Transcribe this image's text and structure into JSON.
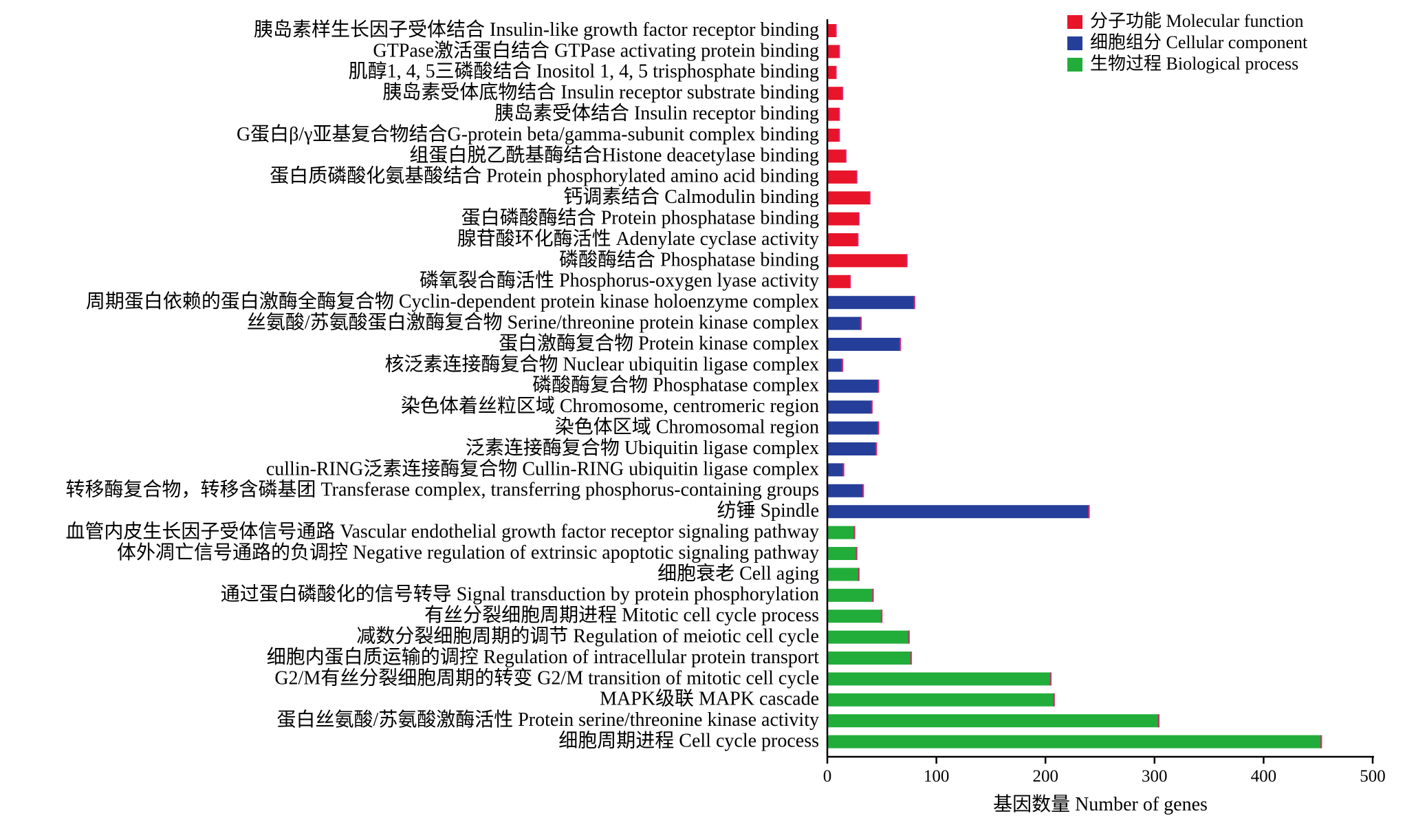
{
  "chart_data": {
    "type": "bar",
    "orientation": "horizontal",
    "xlabel": "基因数量 Number of genes",
    "ylabel": "",
    "xlim": [
      0,
      500
    ],
    "xticks": [
      0,
      100,
      200,
      300,
      400,
      500
    ],
    "grid": false,
    "legend_position": "top-right",
    "legend": [
      {
        "key": "mf",
        "label": "分子功能 Molecular function",
        "color": "#e8142a"
      },
      {
        "key": "cc",
        "label": "细胞组分 Cellular component",
        "color": "#253e9a"
      },
      {
        "key": "bp",
        "label": "生物过程 Biological process",
        "color": "#22ad3a"
      }
    ],
    "bars": [
      {
        "label": "胰岛素样生长因子受体结合 Insulin-like growth factor receptor binding",
        "value": 8,
        "group": "mf"
      },
      {
        "label": "GTPase激活蛋白结合 GTPase activating protein binding",
        "value": 11,
        "group": "mf"
      },
      {
        "label": "肌醇1, 4, 5三磷酸结合 Inositol 1, 4, 5 trisphosphate binding",
        "value": 8,
        "group": "mf"
      },
      {
        "label": "胰岛素受体底物结合 Insulin receptor substrate binding",
        "value": 14,
        "group": "mf"
      },
      {
        "label": "胰岛素受体结合 Insulin receptor binding",
        "value": 11,
        "group": "mf"
      },
      {
        "label": "G蛋白β/γ亚基复合物结合G-protein beta/gamma-subunit complex binding",
        "value": 11,
        "group": "mf"
      },
      {
        "label": "组蛋白脱乙酰基酶结合Histone deacetylase binding",
        "value": 17,
        "group": "mf"
      },
      {
        "label": "蛋白质磷酸化氨基酸结合 Protein phosphorylated amino acid binding",
        "value": 27,
        "group": "mf"
      },
      {
        "label": "钙调素结合 Calmodulin binding",
        "value": 39,
        "group": "mf"
      },
      {
        "label": "蛋白磷酸酶结合 Protein phosphatase binding",
        "value": 29,
        "group": "mf"
      },
      {
        "label": "腺苷酸环化酶活性 Adenylate cyclase activity",
        "value": 28,
        "group": "mf"
      },
      {
        "label": "磷酸酶结合 Phosphatase binding",
        "value": 73,
        "group": "mf"
      },
      {
        "label": "磷氧裂合酶活性 Phosphorus-oxygen lyase activity",
        "value": 21,
        "group": "mf"
      },
      {
        "label": "周期蛋白依赖的蛋白激酶全酶复合物 Cyclin-dependent protein kinase holoenzyme complex",
        "value": 80,
        "group": "cc"
      },
      {
        "label": "丝氨酸/苏氨酸蛋白激酶复合物 Serine/threonine protein kinase complex",
        "value": 31,
        "group": "cc"
      },
      {
        "label": "蛋白激酶复合物 Protein kinase complex",
        "value": 67,
        "group": "cc"
      },
      {
        "label": "核泛素连接酶复合物 Nuclear ubiquitin ligase complex",
        "value": 14,
        "group": "cc"
      },
      {
        "label": "磷酸酶复合物 Phosphatase complex",
        "value": 47,
        "group": "cc"
      },
      {
        "label": "染色体着丝粒区域 Chromosome, centromeric region",
        "value": 41,
        "group": "cc"
      },
      {
        "label": "染色体区域 Chromosomal region",
        "value": 47,
        "group": "cc"
      },
      {
        "label": "泛素连接酶复合物 Ubiquitin ligase complex",
        "value": 45,
        "group": "cc"
      },
      {
        "label": "cullin-RING泛素连接酶复合物 Cullin-RING ubiquitin ligase complex",
        "value": 15,
        "group": "cc"
      },
      {
        "label": "转移酶复合物，转移含磷基团 Transferase complex, transferring phosphorus-containing groups",
        "value": 33,
        "group": "cc"
      },
      {
        "label": "纺锤 Spindle",
        "value": 240,
        "group": "cc"
      },
      {
        "label": "血管内皮生长因子受体信号通路 Vascular endothelial growth factor receptor signaling pathway",
        "value": 25,
        "group": "bp"
      },
      {
        "label": "体外凋亡信号通路的负调控 Negative regulation of extrinsic apoptotic signaling pathway",
        "value": 27,
        "group": "bp"
      },
      {
        "label": "细胞衰老 Cell aging",
        "value": 29,
        "group": "bp"
      },
      {
        "label": "通过蛋白磷酸化的信号转导 Signal transduction by protein phosphorylation",
        "value": 42,
        "group": "bp"
      },
      {
        "label": "有丝分裂细胞周期进程 Mitotic cell cycle process",
        "value": 50,
        "group": "bp"
      },
      {
        "label": "减数分裂细胞周期的调节 Regulation of meiotic cell cycle",
        "value": 75,
        "group": "bp"
      },
      {
        "label": "细胞内蛋白质运输的调控 Regulation of intracellular protein transport",
        "value": 77,
        "group": "bp"
      },
      {
        "label": "G2/M有丝分裂细胞周期的转变 G2/M transition of mitotic cell cycle",
        "value": 205,
        "group": "bp"
      },
      {
        "label": "MAPK级联 MAPK cascade",
        "value": 208,
        "group": "bp"
      },
      {
        "label": "蛋白丝氨酸/苏氨酸激酶活性 Protein serine/threonine kinase activity",
        "value": 304,
        "group": "bp"
      },
      {
        "label": "细胞周期进程 Cell cycle process",
        "value": 453,
        "group": "bp"
      }
    ]
  }
}
